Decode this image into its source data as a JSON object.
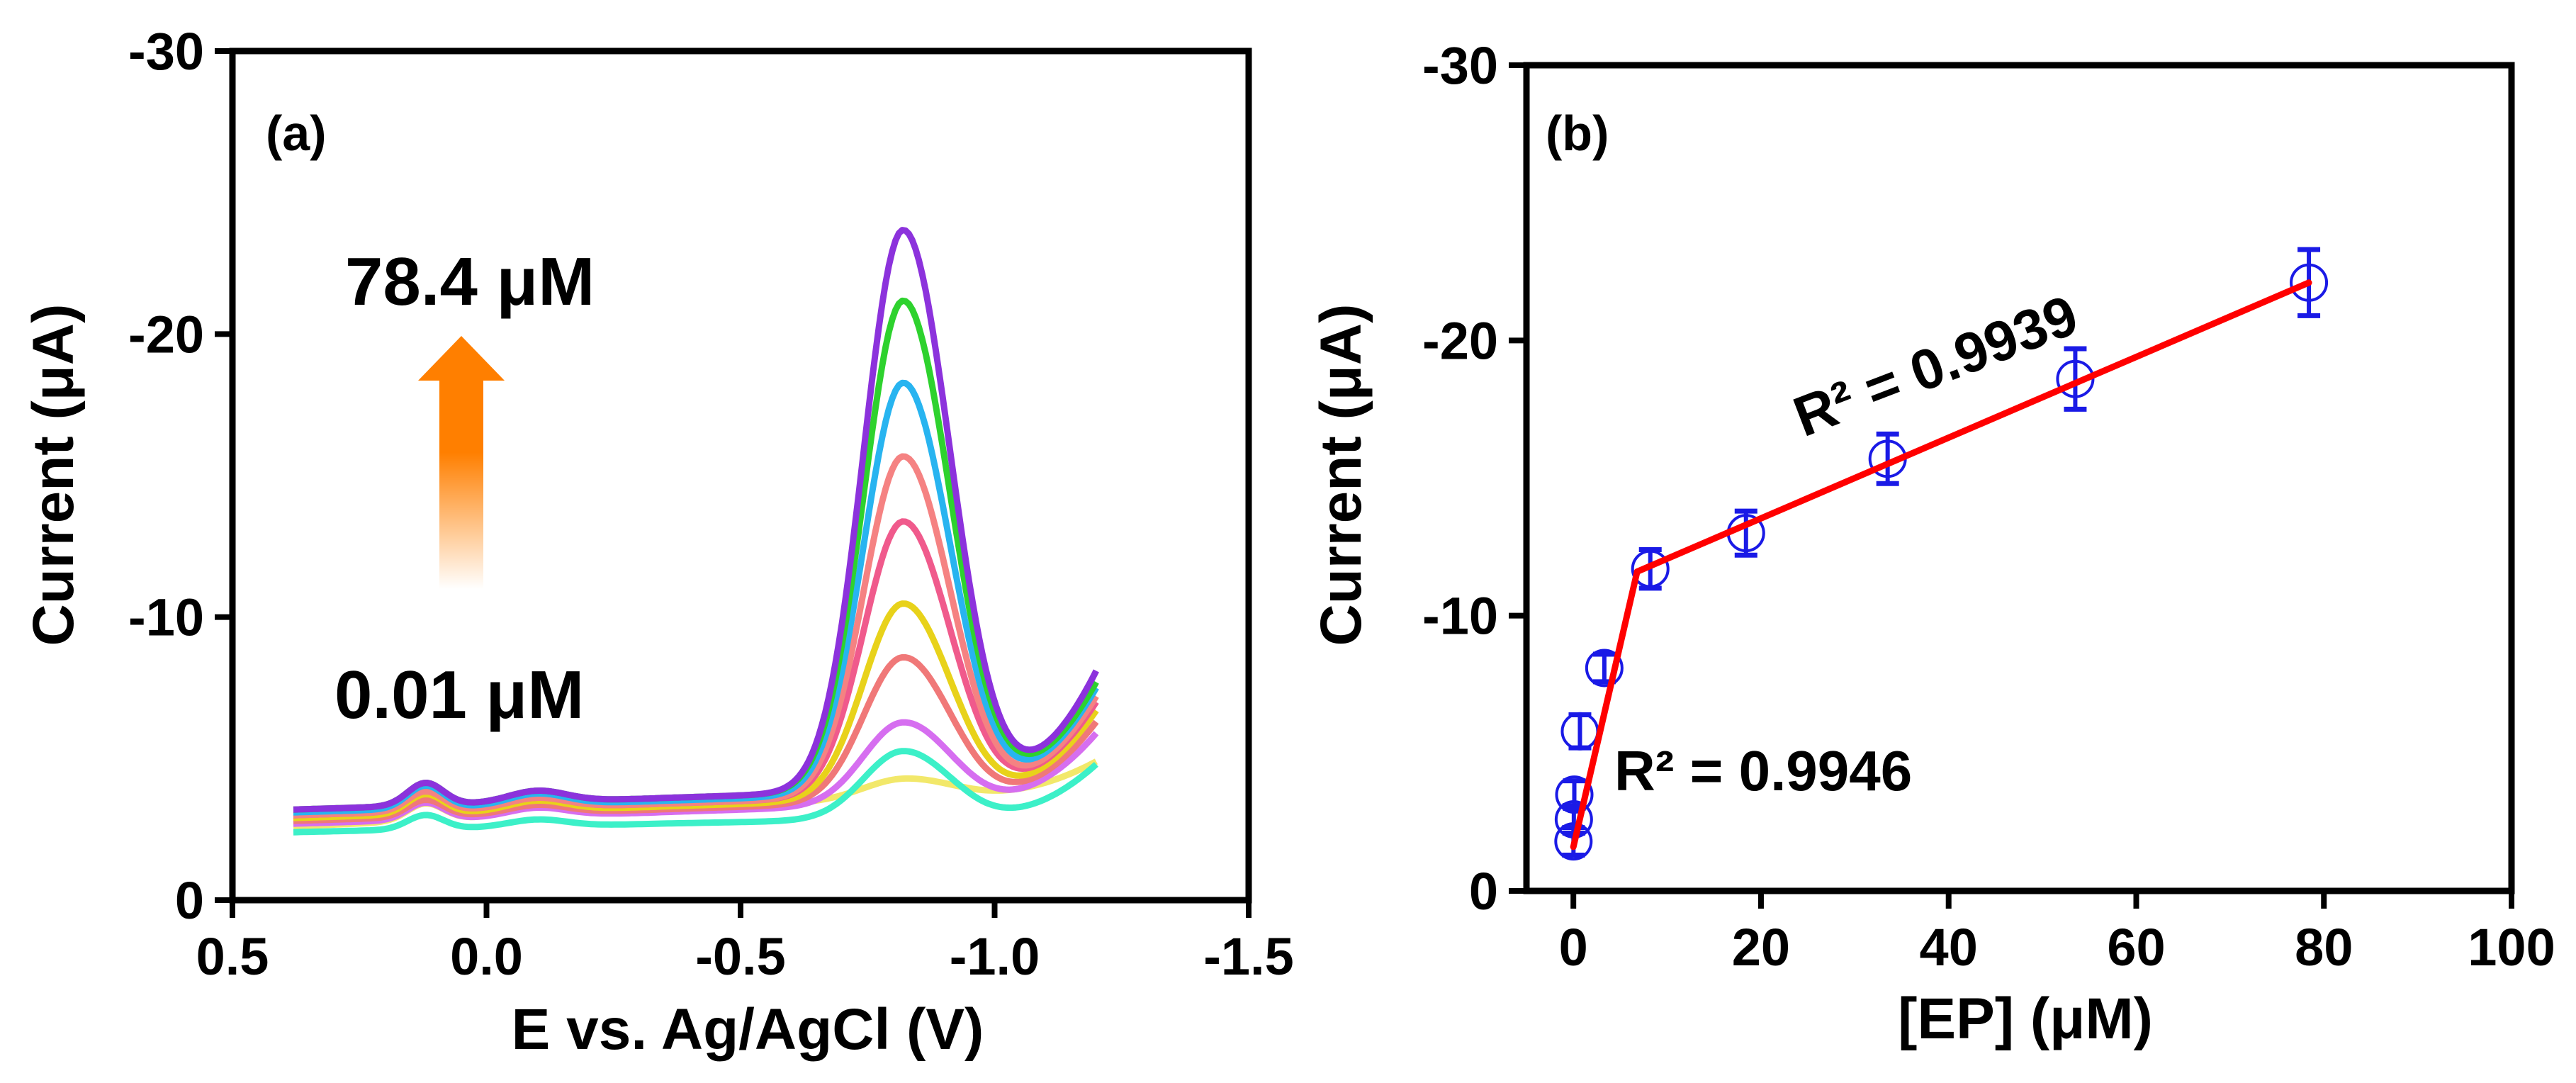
{
  "chart_data": [
    {
      "type": "line",
      "panel_label": "(a)",
      "xlabel": "E vs. Ag/AgCl (V)",
      "ylabel": "Current (μA)",
      "xlim": [
        0.5,
        -1.5
      ],
      "ylim": [
        0,
        -30
      ],
      "xticks": [
        "0.5",
        "0.0",
        "-0.5",
        "-1.0",
        "-1.5"
      ],
      "xtick_values": [
        0.5,
        0.0,
        -0.5,
        -1.0,
        -1.5
      ],
      "yticks": [
        "0",
        "-10",
        "-20",
        "-30"
      ],
      "ytick_values": [
        0,
        -10,
        -20,
        -30
      ],
      "x_range": [
        0.38,
        -1.2
      ],
      "annotations": {
        "high": "78.4 μM",
        "low": "0.01 μM"
      },
      "arrow_colors": {
        "top": "#ff7f00",
        "bottom": "#ffffff"
      },
      "series": [
        {
          "name": "0.01 μM",
          "color": "#f2e86a",
          "peak_current": -4.6,
          "base_start": -2.6,
          "base_mid": -3.2,
          "base_end": -3.9,
          "end_current": -4.9,
          "bump": -0.6
        },
        {
          "name": "c2",
          "color": "#3cf0c8",
          "peak_current": -5.4,
          "base_start": -2.4,
          "base_mid": -2.7,
          "base_end": -3.0,
          "end_current": -4.8,
          "bump": -0.5
        },
        {
          "name": "c3",
          "color": "#d66ef0",
          "peak_current": -6.5,
          "base_start": -2.7,
          "base_mid": -3.1,
          "base_end": -3.6,
          "end_current": -5.9,
          "bump": -0.6
        },
        {
          "name": "c4",
          "color": "#f07878",
          "peak_current": -8.8,
          "base_start": -2.8,
          "base_mid": -3.2,
          "base_end": -3.7,
          "end_current": -6.3,
          "bump": -0.6
        },
        {
          "name": "c5",
          "color": "#e8d21a",
          "peak_current": -10.7,
          "base_start": -2.9,
          "base_mid": -3.3,
          "base_end": -3.8,
          "end_current": -6.7,
          "bump": -0.7
        },
        {
          "name": "c6",
          "color": "#f05a8c",
          "peak_current": -13.6,
          "base_start": -3.0,
          "base_mid": -3.4,
          "base_end": -3.9,
          "end_current": -7.0,
          "bump": -0.7
        },
        {
          "name": "c7",
          "color": "#f58282",
          "peak_current": -15.9,
          "base_start": -3.0,
          "base_mid": -3.4,
          "base_end": -3.9,
          "end_current": -7.2,
          "bump": -0.7
        },
        {
          "name": "c8",
          "color": "#28b4f0",
          "peak_current": -18.5,
          "base_start": -3.1,
          "base_mid": -3.5,
          "base_end": -4.0,
          "end_current": -7.5,
          "bump": -0.8
        },
        {
          "name": "c9",
          "color": "#2ed22e",
          "peak_current": -21.4,
          "base_start": -3.2,
          "base_mid": -3.6,
          "base_end": -4.1,
          "end_current": -7.7,
          "bump": -0.8
        },
        {
          "name": "78.4 μM",
          "color": "#8c32dc",
          "peak_current": -23.9,
          "base_start": -3.2,
          "base_mid": -3.6,
          "base_end": -4.1,
          "end_current": -8.1,
          "bump": -0.8
        }
      ]
    },
    {
      "type": "scatter",
      "panel_label": "(b)",
      "xlabel": "[EP] (μM)",
      "ylabel": "Current (μA)",
      "xlim": [
        -5,
        100
      ],
      "ylim": [
        0,
        -30
      ],
      "xticks": [
        "0",
        "20",
        "40",
        "60",
        "80",
        "100"
      ],
      "xtick_values": [
        0,
        20,
        40,
        60,
        80,
        100
      ],
      "yticks": [
        "0",
        "-10",
        "-20",
        "-30"
      ],
      "ytick_values": [
        0,
        -10,
        -20,
        -30
      ],
      "points": [
        {
          "x": 0.01,
          "y": -1.8,
          "err": 0.5
        },
        {
          "x": 0.05,
          "y": -2.6,
          "err": 0.5
        },
        {
          "x": 0.1,
          "y": -3.5,
          "err": 0.5
        },
        {
          "x": 0.7,
          "y": -5.8,
          "err": 0.6
        },
        {
          "x": 3.3,
          "y": -8.1,
          "err": 0.5
        },
        {
          "x": 8.2,
          "y": -11.7,
          "err": 0.7
        },
        {
          "x": 18.4,
          "y": -13.0,
          "err": 0.8
        },
        {
          "x": 33.5,
          "y": -15.7,
          "err": 0.9
        },
        {
          "x": 53.5,
          "y": -18.6,
          "err": 1.1
        },
        {
          "x": 78.4,
          "y": -22.1,
          "err": 1.2
        }
      ],
      "fits": [
        {
          "name": "low range",
          "x": [
            0.0,
            6.8
          ],
          "y": [
            -1.6,
            -11.6
          ],
          "r2_label": "R² = 0.9946"
        },
        {
          "name": "high range",
          "x": [
            6.8,
            78.4
          ],
          "y": [
            -11.6,
            -22.1
          ],
          "r2_label": "R² = 0.9939"
        }
      ],
      "point_color": "#1a1ae6",
      "fit_color": "#ff0000"
    }
  ]
}
